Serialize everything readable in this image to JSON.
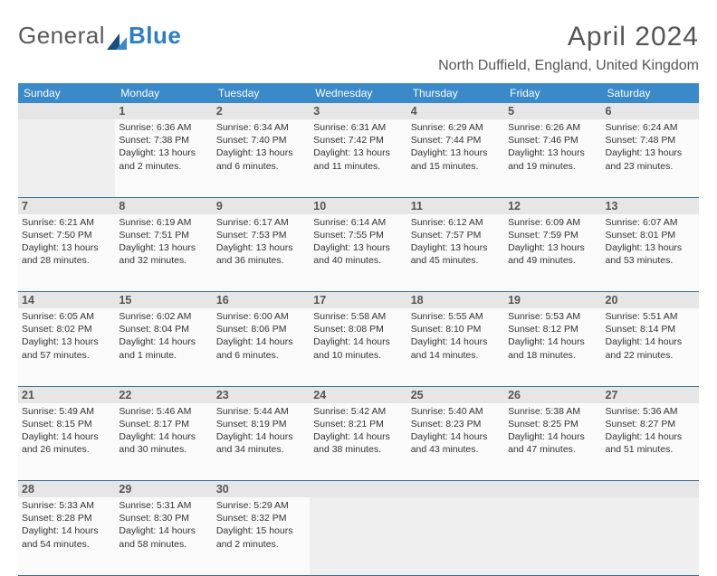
{
  "brand": {
    "part1": "General",
    "part2": "Blue"
  },
  "title": "April 2024",
  "location": "North Duffield, England, United Kingdom",
  "colors": {
    "header_bg": "#3a89c9",
    "header_text": "#ffffff",
    "daynum_bg": "#e6e6e6",
    "cell_bg": "#fafafa",
    "week_border": "#3a6a95",
    "brand_accent": "#2c7ec4",
    "logo_dark": "#1b4e7a"
  },
  "day_headers": [
    "Sunday",
    "Monday",
    "Tuesday",
    "Wednesday",
    "Thursday",
    "Friday",
    "Saturday"
  ],
  "weeks": [
    [
      {
        "n": "",
        "empty": true
      },
      {
        "n": "1",
        "sunrise": "Sunrise: 6:36 AM",
        "sunset": "Sunset: 7:38 PM",
        "day1": "Daylight: 13 hours",
        "day2": "and 2 minutes."
      },
      {
        "n": "2",
        "sunrise": "Sunrise: 6:34 AM",
        "sunset": "Sunset: 7:40 PM",
        "day1": "Daylight: 13 hours",
        "day2": "and 6 minutes."
      },
      {
        "n": "3",
        "sunrise": "Sunrise: 6:31 AM",
        "sunset": "Sunset: 7:42 PM",
        "day1": "Daylight: 13 hours",
        "day2": "and 11 minutes."
      },
      {
        "n": "4",
        "sunrise": "Sunrise: 6:29 AM",
        "sunset": "Sunset: 7:44 PM",
        "day1": "Daylight: 13 hours",
        "day2": "and 15 minutes."
      },
      {
        "n": "5",
        "sunrise": "Sunrise: 6:26 AM",
        "sunset": "Sunset: 7:46 PM",
        "day1": "Daylight: 13 hours",
        "day2": "and 19 minutes."
      },
      {
        "n": "6",
        "sunrise": "Sunrise: 6:24 AM",
        "sunset": "Sunset: 7:48 PM",
        "day1": "Daylight: 13 hours",
        "day2": "and 23 minutes."
      }
    ],
    [
      {
        "n": "7",
        "sunrise": "Sunrise: 6:21 AM",
        "sunset": "Sunset: 7:50 PM",
        "day1": "Daylight: 13 hours",
        "day2": "and 28 minutes."
      },
      {
        "n": "8",
        "sunrise": "Sunrise: 6:19 AM",
        "sunset": "Sunset: 7:51 PM",
        "day1": "Daylight: 13 hours",
        "day2": "and 32 minutes."
      },
      {
        "n": "9",
        "sunrise": "Sunrise: 6:17 AM",
        "sunset": "Sunset: 7:53 PM",
        "day1": "Daylight: 13 hours",
        "day2": "and 36 minutes."
      },
      {
        "n": "10",
        "sunrise": "Sunrise: 6:14 AM",
        "sunset": "Sunset: 7:55 PM",
        "day1": "Daylight: 13 hours",
        "day2": "and 40 minutes."
      },
      {
        "n": "11",
        "sunrise": "Sunrise: 6:12 AM",
        "sunset": "Sunset: 7:57 PM",
        "day1": "Daylight: 13 hours",
        "day2": "and 45 minutes."
      },
      {
        "n": "12",
        "sunrise": "Sunrise: 6:09 AM",
        "sunset": "Sunset: 7:59 PM",
        "day1": "Daylight: 13 hours",
        "day2": "and 49 minutes."
      },
      {
        "n": "13",
        "sunrise": "Sunrise: 6:07 AM",
        "sunset": "Sunset: 8:01 PM",
        "day1": "Daylight: 13 hours",
        "day2": "and 53 minutes."
      }
    ],
    [
      {
        "n": "14",
        "sunrise": "Sunrise: 6:05 AM",
        "sunset": "Sunset: 8:02 PM",
        "day1": "Daylight: 13 hours",
        "day2": "and 57 minutes."
      },
      {
        "n": "15",
        "sunrise": "Sunrise: 6:02 AM",
        "sunset": "Sunset: 8:04 PM",
        "day1": "Daylight: 14 hours",
        "day2": "and 1 minute."
      },
      {
        "n": "16",
        "sunrise": "Sunrise: 6:00 AM",
        "sunset": "Sunset: 8:06 PM",
        "day1": "Daylight: 14 hours",
        "day2": "and 6 minutes."
      },
      {
        "n": "17",
        "sunrise": "Sunrise: 5:58 AM",
        "sunset": "Sunset: 8:08 PM",
        "day1": "Daylight: 14 hours",
        "day2": "and 10 minutes."
      },
      {
        "n": "18",
        "sunrise": "Sunrise: 5:55 AM",
        "sunset": "Sunset: 8:10 PM",
        "day1": "Daylight: 14 hours",
        "day2": "and 14 minutes."
      },
      {
        "n": "19",
        "sunrise": "Sunrise: 5:53 AM",
        "sunset": "Sunset: 8:12 PM",
        "day1": "Daylight: 14 hours",
        "day2": "and 18 minutes."
      },
      {
        "n": "20",
        "sunrise": "Sunrise: 5:51 AM",
        "sunset": "Sunset: 8:14 PM",
        "day1": "Daylight: 14 hours",
        "day2": "and 22 minutes."
      }
    ],
    [
      {
        "n": "21",
        "sunrise": "Sunrise: 5:49 AM",
        "sunset": "Sunset: 8:15 PM",
        "day1": "Daylight: 14 hours",
        "day2": "and 26 minutes."
      },
      {
        "n": "22",
        "sunrise": "Sunrise: 5:46 AM",
        "sunset": "Sunset: 8:17 PM",
        "day1": "Daylight: 14 hours",
        "day2": "and 30 minutes."
      },
      {
        "n": "23",
        "sunrise": "Sunrise: 5:44 AM",
        "sunset": "Sunset: 8:19 PM",
        "day1": "Daylight: 14 hours",
        "day2": "and 34 minutes."
      },
      {
        "n": "24",
        "sunrise": "Sunrise: 5:42 AM",
        "sunset": "Sunset: 8:21 PM",
        "day1": "Daylight: 14 hours",
        "day2": "and 38 minutes."
      },
      {
        "n": "25",
        "sunrise": "Sunrise: 5:40 AM",
        "sunset": "Sunset: 8:23 PM",
        "day1": "Daylight: 14 hours",
        "day2": "and 43 minutes."
      },
      {
        "n": "26",
        "sunrise": "Sunrise: 5:38 AM",
        "sunset": "Sunset: 8:25 PM",
        "day1": "Daylight: 14 hours",
        "day2": "and 47 minutes."
      },
      {
        "n": "27",
        "sunrise": "Sunrise: 5:36 AM",
        "sunset": "Sunset: 8:27 PM",
        "day1": "Daylight: 14 hours",
        "day2": "and 51 minutes."
      }
    ],
    [
      {
        "n": "28",
        "sunrise": "Sunrise: 5:33 AM",
        "sunset": "Sunset: 8:28 PM",
        "day1": "Daylight: 14 hours",
        "day2": "and 54 minutes."
      },
      {
        "n": "29",
        "sunrise": "Sunrise: 5:31 AM",
        "sunset": "Sunset: 8:30 PM",
        "day1": "Daylight: 14 hours",
        "day2": "and 58 minutes."
      },
      {
        "n": "30",
        "sunrise": "Sunrise: 5:29 AM",
        "sunset": "Sunset: 8:32 PM",
        "day1": "Daylight: 15 hours",
        "day2": "and 2 minutes."
      },
      {
        "n": "",
        "empty": true
      },
      {
        "n": "",
        "empty": true
      },
      {
        "n": "",
        "empty": true
      },
      {
        "n": "",
        "empty": true
      }
    ]
  ]
}
